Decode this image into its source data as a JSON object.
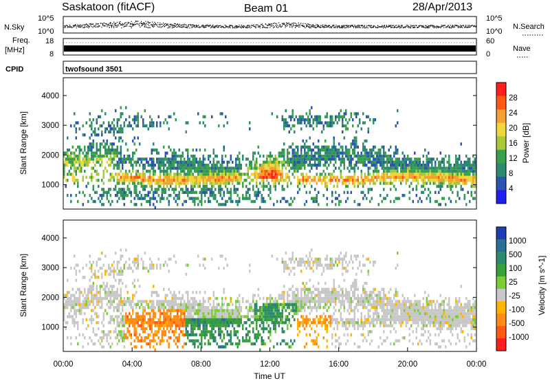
{
  "header": {
    "station": "Saskatoon (fitACF)",
    "beam": "Beam 01",
    "date": "28/Apr/2013"
  },
  "strips": {
    "nsky_label": "N.Sky",
    "nsky_top": "10^5",
    "nsky_bot": "10^0",
    "nsearch_label": "N.Search",
    "nsearch_top": "10^5",
    "nsearch_bot": "10^0",
    "freq_label_1": "Freq.",
    "freq_label_2": "[MHz]",
    "freq_top": "18",
    "freq_bot": "8",
    "nave_label": "Nave",
    "nave_top": "60",
    "nave_bot": "0",
    "cpid_label": "CPID",
    "cpid_value": "twofsound 3501"
  },
  "chart_data": [
    {
      "type": "heatmap",
      "name": "power-panel",
      "ylabel": "Slant Range [km]",
      "ylim": [
        180,
        4600
      ],
      "yticks": [
        "1000",
        "2000",
        "3000",
        "4000"
      ],
      "colorbar_label": "Power [dB]",
      "colorbar_ticks": [
        "4",
        "8",
        "12",
        "16",
        "20",
        "24",
        "28"
      ],
      "colors": [
        "#1e1ef0",
        "#2a55b0",
        "#2e8a6e",
        "#3aa04a",
        "#a8c83c",
        "#f0d83c",
        "#f5a030",
        "#ff5a14",
        "#ff1e1e"
      ]
    },
    {
      "type": "heatmap",
      "name": "velocity-panel",
      "ylabel": "Slant Range [km]",
      "ylim": [
        180,
        4600
      ],
      "yticks": [
        "1000",
        "2000",
        "3000",
        "4000"
      ],
      "xlabel": "Time UT",
      "xticks": [
        "00:00",
        "04:00",
        "08:00",
        "12:00",
        "16:00",
        "20:00",
        "00:00"
      ],
      "colorbar_label": "Velocity [m s^-1]",
      "colorbar_ticks": [
        "1000",
        "500",
        "100",
        "25",
        "-25",
        "-100",
        "-500",
        "-1000"
      ],
      "colors": [
        "#1e3cb4",
        "#2a6e96",
        "#2e8a6e",
        "#3aa03a",
        "#7ccc3a",
        "#c8c8c8",
        "#ffb400",
        "#ff8c14",
        "#ff5a14",
        "#ff1e1e"
      ]
    }
  ]
}
